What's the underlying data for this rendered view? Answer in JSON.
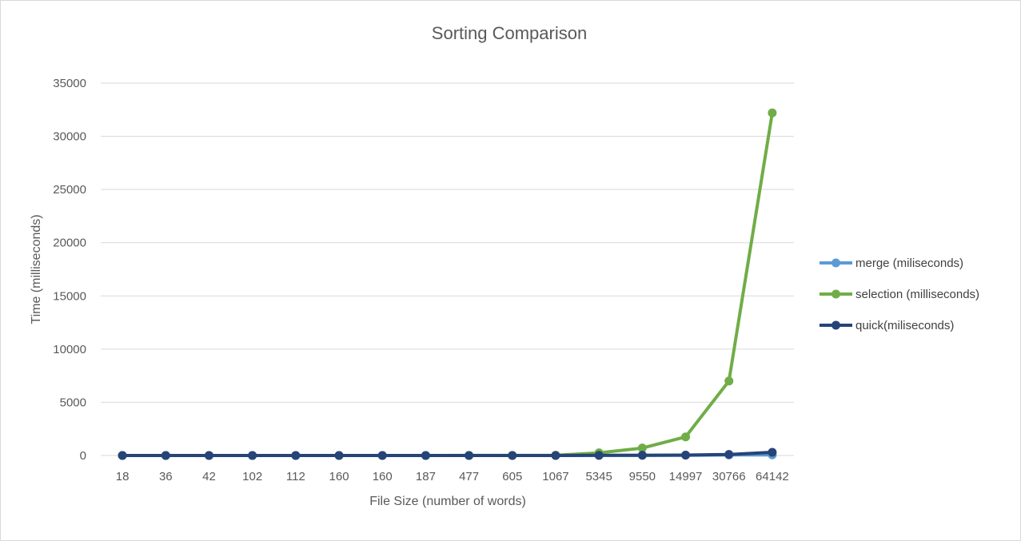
{
  "chart_data": {
    "type": "line",
    "title": "Sorting Comparison",
    "xlabel": "File Size (number of words)",
    "ylabel": "Time (milliseconds)",
    "categories": [
      "18",
      "36",
      "42",
      "102",
      "112",
      "160",
      "160",
      "187",
      "477",
      "605",
      "1067",
      "5345",
      "9550",
      "14997",
      "30766",
      "64142"
    ],
    "ylim": [
      0,
      35000
    ],
    "yticks": [
      0,
      5000,
      10000,
      15000,
      20000,
      25000,
      30000,
      35000
    ],
    "grid": true,
    "legend_position": "right",
    "series": [
      {
        "name": "merge (miliseconds)",
        "color": "#5b9bd5",
        "values": [
          0,
          0,
          0,
          0,
          0,
          0,
          0,
          0,
          1,
          1,
          2,
          10,
          15,
          25,
          50,
          60
        ]
      },
      {
        "name": "selection  (milliseconds)",
        "color": "#70ad47",
        "values": [
          0,
          0,
          0,
          0,
          0,
          0,
          0,
          1,
          5,
          8,
          25,
          250,
          700,
          1750,
          7000,
          32200
        ]
      },
      {
        "name": "quick(miliseconds)",
        "color": "#264478",
        "values": [
          0,
          0,
          0,
          0,
          0,
          0,
          0,
          0,
          1,
          1,
          3,
          15,
          25,
          40,
          100,
          300
        ]
      }
    ]
  }
}
